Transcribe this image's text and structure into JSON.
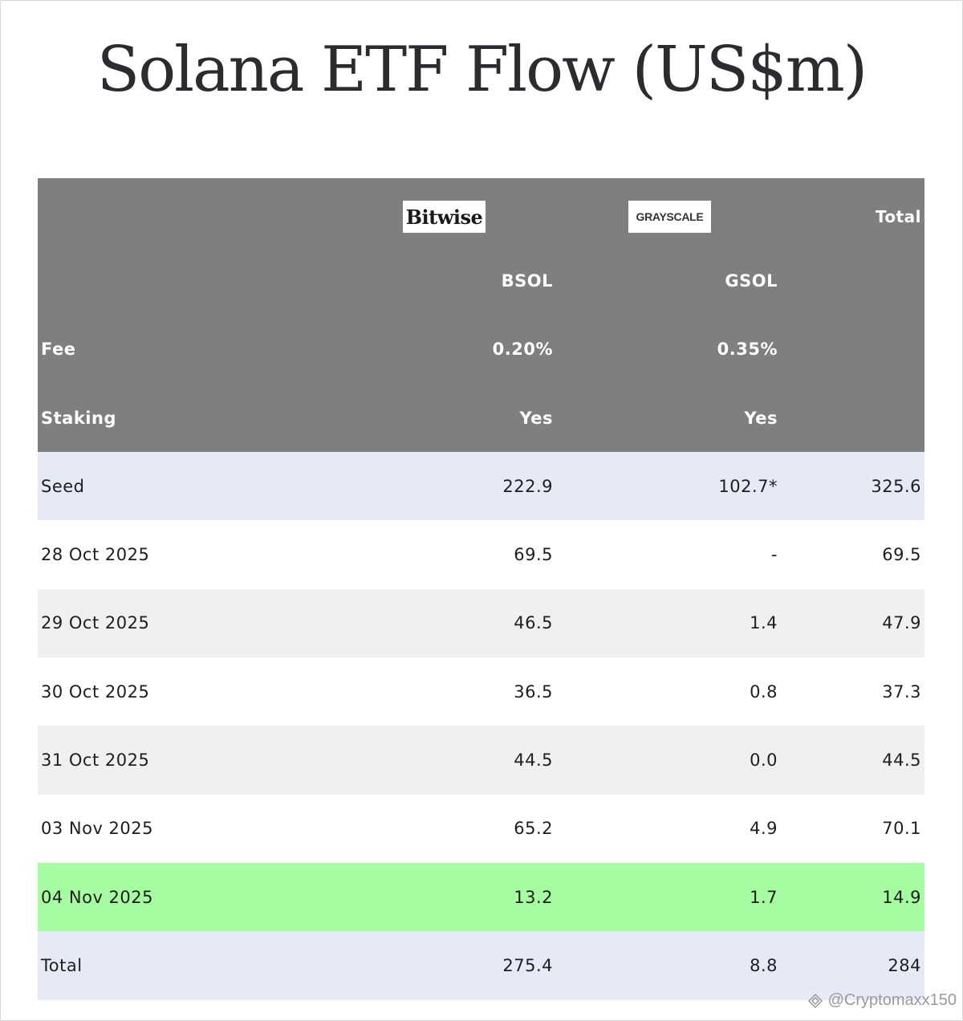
{
  "title": "Solana ETF Flow (US$m)",
  "header": {
    "logos": [
      "Bitwise",
      "GRAYSCALE"
    ],
    "total_label": "Total",
    "tickers": [
      "BSOL",
      "GSOL"
    ],
    "fee_label": "Fee",
    "fees": [
      "0.20%",
      "0.35%"
    ],
    "staking_label": "Staking",
    "staking": [
      "Yes",
      "Yes"
    ]
  },
  "chart_data": {
    "type": "table",
    "title": "Solana ETF Flow (US$m)",
    "columns": [
      "",
      "BSOL",
      "GSOL",
      "Total"
    ],
    "rows": [
      [
        "Seed",
        "222.9",
        "102.7*",
        "325.6"
      ],
      [
        "28 Oct 2025",
        "69.5",
        "-",
        "69.5"
      ],
      [
        "29 Oct 2025",
        "46.5",
        "1.4",
        "47.9"
      ],
      [
        "30 Oct 2025",
        "36.5",
        "0.8",
        "37.3"
      ],
      [
        "31 Oct 2025",
        "44.5",
        "0.0",
        "44.5"
      ],
      [
        "03 Nov 2025",
        "65.2",
        "4.9",
        "70.1"
      ],
      [
        "04 Nov 2025",
        "13.2",
        "1.7",
        "14.9"
      ],
      [
        "Total",
        "275.4",
        "8.8",
        "284"
      ]
    ],
    "highlight_row": "04 Nov 2025",
    "colors": {
      "header_bg": "#7f7f7f",
      "seed_bg": "#e6eaf6",
      "alt_bg": "#f0f0f0",
      "highlight_bg": "#a6fca0"
    }
  },
  "watermark": "@Cryptomaxx150"
}
